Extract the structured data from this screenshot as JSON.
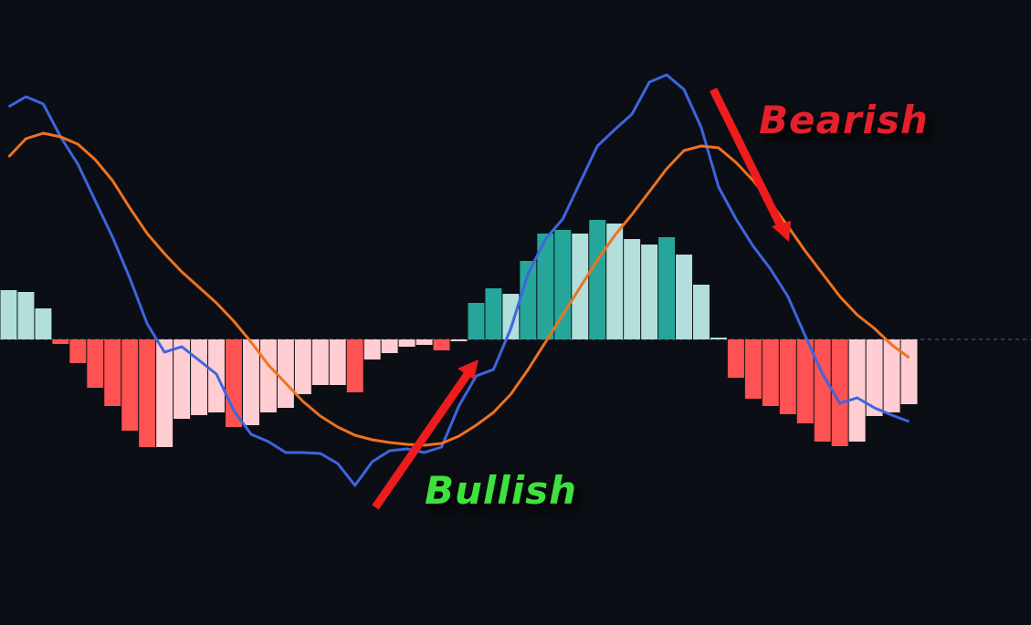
{
  "chart_data": {
    "type": "combo",
    "ylim": [
      -313,
      372
    ],
    "zero_line": true,
    "series": [
      {
        "type": "bar",
        "values": [
          54,
          52,
          34,
          -5,
          -26,
          -53,
          -73,
          -100,
          -118,
          -118,
          -87,
          -83,
          -80,
          -96,
          -94,
          -80,
          -75,
          -60,
          -50,
          -50,
          -58,
          -22,
          -15,
          -8,
          -6,
          -12,
          -2,
          40,
          56,
          50,
          86,
          116,
          120,
          116,
          131,
          127,
          110,
          104,
          112,
          93,
          60,
          2,
          -42,
          -65,
          -73,
          -82,
          -92,
          -112,
          -117,
          -112,
          -84,
          -80,
          -71
        ],
        "colors": [
          "#b2dfdb",
          "#b2dfdb",
          "#b2dfdb",
          "#ff5252",
          "#ff5252",
          "#ff5252",
          "#ff5252",
          "#ff5252",
          "#ff5252",
          "#ffcdd2",
          "#ffcdd2",
          "#ffcdd2",
          "#ffcdd2",
          "#ff5252",
          "#ffcdd2",
          "#ffcdd2",
          "#ffcdd2",
          "#ffcdd2",
          "#ffcdd2",
          "#ffcdd2",
          "#ff5252",
          "#ffcdd2",
          "#ffcdd2",
          "#ffcdd2",
          "#ffcdd2",
          "#ff5252",
          "#ffcdd2",
          "#26a69a",
          "#26a69a",
          "#b2dfdb",
          "#26a69a",
          "#26a69a",
          "#26a69a",
          "#b2dfdb",
          "#26a69a",
          "#b2dfdb",
          "#b2dfdb",
          "#b2dfdb",
          "#26a69a",
          "#b2dfdb",
          "#b2dfdb",
          "#b2dfdb",
          "#ff5252",
          "#ff5252",
          "#ff5252",
          "#ff5252",
          "#ff5252",
          "#ff5252",
          "#ff5252",
          "#ffcdd2",
          "#ffcdd2",
          "#ffcdd2",
          "#ffcdd2"
        ]
      },
      {
        "type": "line",
        "color": "#3c66e0",
        "values": [
          255,
          266,
          258,
          222,
          192,
          152,
          112,
          67,
          17,
          -14,
          -8,
          -23,
          -38,
          -78,
          -104,
          -112,
          -124,
          -124,
          -125,
          -136,
          -160,
          -134,
          -122,
          -120,
          -124,
          -118,
          -73,
          -40,
          -33,
          12,
          72,
          110,
          132,
          172,
          212,
          230,
          247,
          282,
          290,
          274,
          232,
          167,
          132,
          102,
          77,
          47,
          4,
          -38,
          -70,
          -64,
          -75,
          -83,
          -90
        ]
      },
      {
        "type": "line",
        "color": "#f0721e",
        "values": [
          200,
          220,
          226,
          222,
          214,
          197,
          174,
          144,
          116,
          94,
          74,
          57,
          40,
          20,
          -3,
          -28,
          -48,
          -68,
          -84,
          -96,
          -105,
          -110,
          -113,
          -115,
          -116,
          -114,
          -106,
          -94,
          -80,
          -60,
          -33,
          -3,
          27,
          57,
          87,
          114,
          137,
          162,
          187,
          207,
          212,
          210,
          194,
          174,
          150,
          124,
          97,
          72,
          47,
          27,
          12,
          -6,
          -20
        ]
      }
    ],
    "annotations": [
      {
        "text": "Bullish",
        "color": "#3ee23e"
      },
      {
        "text": "Bearish",
        "color": "#e4202c"
      }
    ]
  }
}
